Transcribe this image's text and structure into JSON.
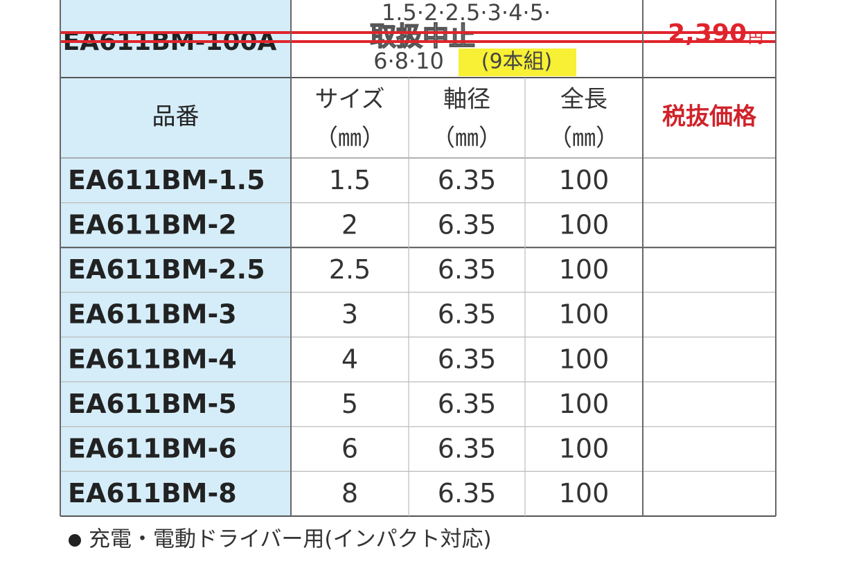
{
  "discontinued": {
    "part": "EA611BM-100A",
    "sizes_line1": "1.5·2·2.5·3·4·5·",
    "sizes_line2": "6·8·10",
    "set": "(9本組)",
    "status": "取扱中止",
    "price": "2,390",
    "currency": "円"
  },
  "table": {
    "header": [
      [
        "品番"
      ],
      [
        "サイズ",
        "（㎜）"
      ],
      [
        "軸径",
        "（㎜）"
      ],
      [
        "全長",
        "（㎜）"
      ],
      [
        "税抜価格"
      ]
    ],
    "rows": [
      [
        "EA611BM-1.5",
        "1.5",
        "6.35",
        "100"
      ],
      [
        "EA611BM-2",
        "2",
        "6.35",
        "100"
      ],
      [
        "EA611BM-2.5",
        "2.5",
        "6.35",
        "100"
      ],
      [
        "EA611BM-3",
        "3",
        "6.35",
        "100"
      ],
      [
        "EA611BM-4",
        "4",
        "6.35",
        "100"
      ],
      [
        "EA611BM-5",
        "5",
        "6.35",
        "100"
      ],
      [
        "EA611BM-6",
        "6",
        "6.35",
        "100"
      ],
      [
        "EA611BM-8",
        "8",
        "6.35",
        "100"
      ]
    ]
  },
  "footnote": "充電・電動ドライバー用(インパクト対応)"
}
